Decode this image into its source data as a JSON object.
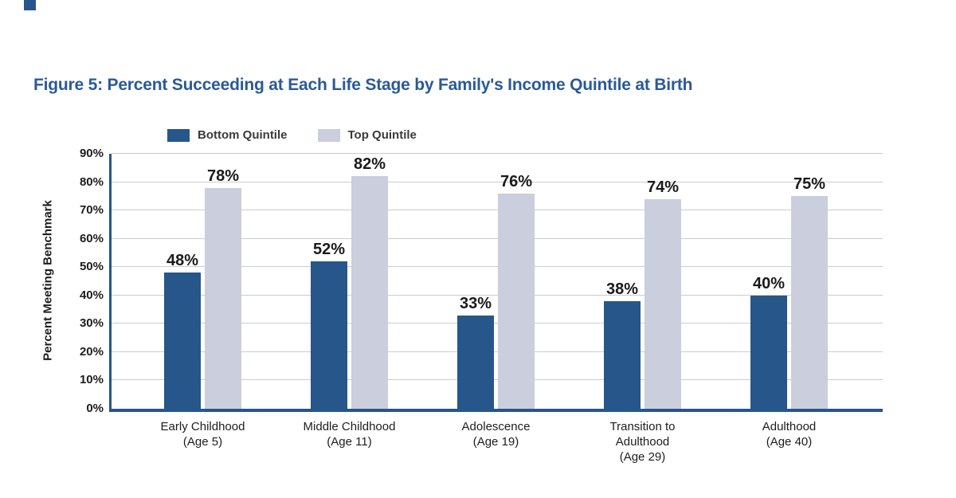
{
  "page": {
    "figure_title": "Figure 5: Percent Succeeding at Each Life Stage by Family's Income Quintile at Birth"
  },
  "legend": {
    "items": [
      {
        "label": "Bottom Quintile",
        "color": "#26568A"
      },
      {
        "label": "Top Quintile",
        "color": "#CBCEDC"
      }
    ]
  },
  "chart_data": {
    "type": "bar",
    "title": "Figure 5: Percent Succeeding at Each Life Stage by Family's Income Quintile at Birth",
    "xlabel": "",
    "ylabel": "Percent Meeting Benchmark",
    "ylim": [
      0,
      90
    ],
    "y_tick_labels": [
      "0%",
      "10%",
      "20%",
      "30%",
      "40%",
      "50%",
      "60%",
      "70%",
      "80%",
      "90%"
    ],
    "grid": "horizontal",
    "legend_position": "top-left",
    "categories": [
      [
        "Early Childhood",
        "(Age 5)"
      ],
      [
        "Middle Childhood",
        "(Age 11)"
      ],
      [
        "Adolescence",
        "(Age 19)"
      ],
      [
        "Transition to",
        "Adulthood",
        "(Age 29)"
      ],
      [
        "Adulthood",
        "(Age 40)"
      ]
    ],
    "series": [
      {
        "name": "Bottom Quintile",
        "color": "#26568A",
        "values": [
          48,
          52,
          33,
          38,
          40
        ],
        "labels": [
          "48%",
          "52%",
          "33%",
          "38%",
          "40%"
        ]
      },
      {
        "name": "Top Quintile",
        "color": "#CBCEDC",
        "values": [
          78,
          82,
          76,
          74,
          75
        ],
        "labels": [
          "78%",
          "82%",
          "76%",
          "74%",
          "75%"
        ]
      }
    ]
  },
  "colors": {
    "title_blue": "#2A5A97",
    "axis_navy": "#26568A",
    "gridline_gray": "#C9CCD2",
    "corner_mark_navy": "#26568A",
    "label_text": "#1d1d1d"
  }
}
